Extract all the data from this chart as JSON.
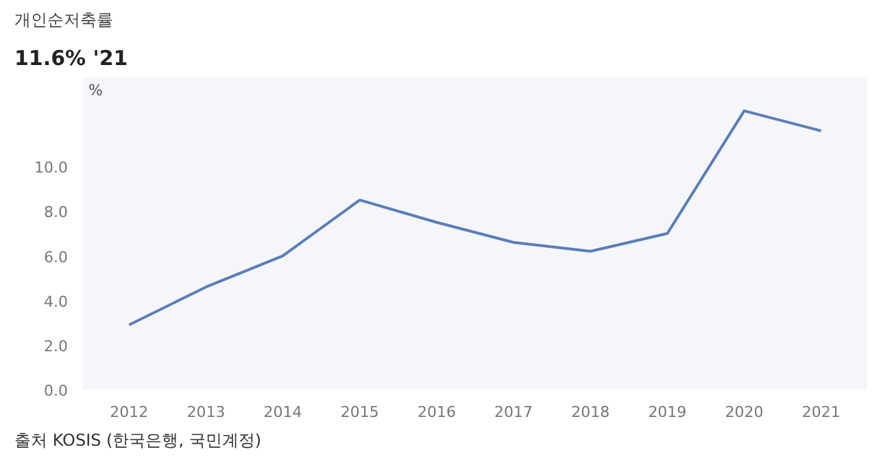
{
  "chart_data": {
    "type": "line",
    "title": "개인순저축률",
    "subtitle": "11.6% '21",
    "ylabel": "%",
    "categories": [
      "2012",
      "2013",
      "2014",
      "2015",
      "2016",
      "2017",
      "2018",
      "2019",
      "2020",
      "2021"
    ],
    "series": [
      {
        "color": "#5b7db8",
        "values": [
          2.9,
          4.6,
          6.0,
          8.5,
          7.5,
          6.6,
          6.2,
          7.0,
          12.5,
          11.6
        ]
      }
    ],
    "ylim": [
      0,
      14
    ],
    "yticks": [
      {
        "value": 0,
        "label": "0.0"
      },
      {
        "value": 2,
        "label": "2.0"
      },
      {
        "value": 4,
        "label": "4.0"
      },
      {
        "value": 6,
        "label": "6.0"
      },
      {
        "value": 8,
        "label": "8.0"
      },
      {
        "value": 10,
        "label": "10.0"
      }
    ],
    "annotations": [
      "출처 KOSIS (한국은행, 국민계정)"
    ],
    "grid": false,
    "marker": "none",
    "line_style": "solid"
  }
}
